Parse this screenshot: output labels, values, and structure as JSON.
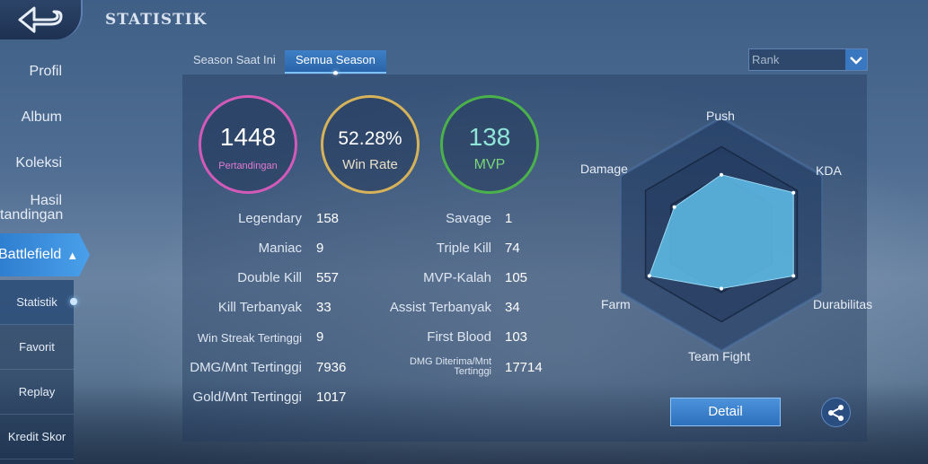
{
  "header": {
    "title": "STATISTIK",
    "back_icon": "back-arrow-icon"
  },
  "sidebar": {
    "items": [
      {
        "label": "Profil"
      },
      {
        "label": "Album"
      },
      {
        "label": "Koleksi"
      },
      {
        "label_line1": "Hasil",
        "label_line2": "tandingan"
      }
    ],
    "active": {
      "label": "Battlefield",
      "icon": "chevron-up-icon"
    },
    "subitems": [
      {
        "label": "Statistik",
        "active": true
      },
      {
        "label": "Favorit"
      },
      {
        "label": "Replay"
      },
      {
        "label": "Kredit Skor"
      }
    ]
  },
  "tabs": [
    {
      "label": "Season Saat Ini",
      "active": false
    },
    {
      "label": "Semua Season",
      "active": true
    }
  ],
  "filter": {
    "value": "Rank",
    "icon": "chevron-down-icon"
  },
  "summary": [
    {
      "value": "1448",
      "label": "Pertandingan",
      "color": "#d35ab9"
    },
    {
      "value": "52.28%",
      "label": "Win Rate",
      "color": "#d6b35a"
    },
    {
      "value": "138",
      "label": "MVP",
      "color": "#4bb14b"
    }
  ],
  "stats_left": [
    {
      "label": "Legendary",
      "value": "158"
    },
    {
      "label": "Maniac",
      "value": "9"
    },
    {
      "label": "Double Kill",
      "value": "557"
    },
    {
      "label": "Kill Terbanyak",
      "value": "33"
    },
    {
      "label": "Win Streak Tertinggi",
      "value": "9"
    },
    {
      "label": "DMG/Mnt Tertinggi",
      "value": "7936"
    },
    {
      "label": "Gold/Mnt Tertinggi",
      "value": "1017"
    }
  ],
  "stats_right": [
    {
      "label": "Savage",
      "value": "1"
    },
    {
      "label": "Triple Kill",
      "value": "74"
    },
    {
      "label": "MVP-Kalah",
      "value": "105"
    },
    {
      "label": "Assist Terbanyak",
      "value": "34"
    },
    {
      "label": "First Blood",
      "value": "103"
    },
    {
      "label_line1": "DMG Diterima/Mnt",
      "label_line2": "Tertinggi",
      "value": "17714"
    }
  ],
  "radar": {
    "axes": [
      "Push",
      "KDA",
      "Durabilitas",
      "Team Fight",
      "Farm",
      "Damage"
    ],
    "levels": [
      0.68,
      0.95,
      0.95,
      0.62,
      0.95,
      0.62
    ],
    "fill": "#5fc0ea"
  },
  "actions": {
    "detail_label": "Detail",
    "share_icon": "share-icon"
  }
}
